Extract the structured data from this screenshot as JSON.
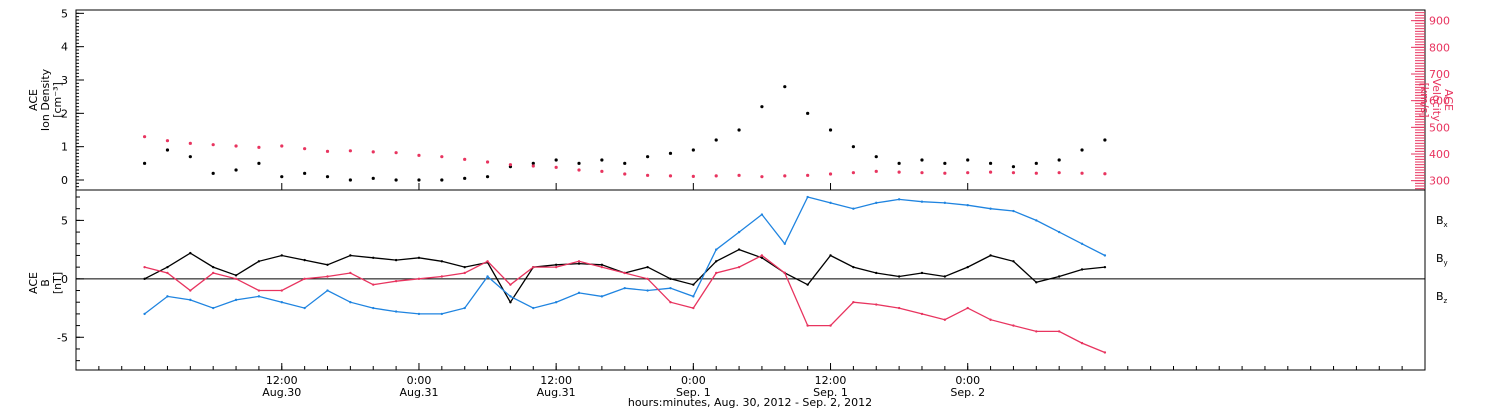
{
  "chart_data": [
    {
      "type": "scatter",
      "ylabel_lines": [
        "ACE",
        "Ion Density",
        "[cm⁻³]"
      ],
      "ylabel_right_lines": [
        "ACE",
        "Velocity",
        "[km/s]"
      ],
      "ylim": [
        -0.3,
        5.1
      ],
      "ylim_right": [
        265,
        940
      ],
      "y_ticks": [
        "0",
        "1",
        "2",
        "3",
        "4",
        "5"
      ],
      "y_ticks_right": [
        "300",
        "400",
        "500",
        "600",
        "700",
        "800",
        "900"
      ],
      "series": [
        {
          "color": "#000000",
          "axis": "left",
          "points": [
            [
              0,
              0.5
            ],
            [
              2,
              0.9
            ],
            [
              4,
              0.7
            ],
            [
              6,
              0.2
            ],
            [
              8,
              0.3
            ],
            [
              10,
              0.5
            ],
            [
              12,
              0.1
            ],
            [
              14,
              0.2
            ],
            [
              16,
              0.1
            ],
            [
              18,
              0.0
            ],
            [
              20,
              0.05
            ],
            [
              22,
              0.0
            ],
            [
              24,
              0.0
            ],
            [
              26,
              0.0
            ],
            [
              28,
              0.05
            ],
            [
              30,
              0.1
            ],
            [
              32,
              0.4
            ],
            [
              34,
              0.5
            ],
            [
              36,
              0.6
            ],
            [
              38,
              0.5
            ],
            [
              40,
              0.6
            ],
            [
              42,
              0.5
            ],
            [
              44,
              0.7
            ],
            [
              46,
              0.8
            ],
            [
              48,
              0.9
            ],
            [
              50,
              1.2
            ],
            [
              52,
              1.5
            ],
            [
              54,
              2.2
            ],
            [
              56,
              2.8
            ],
            [
              58,
              2.0
            ],
            [
              60,
              1.5
            ],
            [
              62,
              1.0
            ],
            [
              64,
              0.7
            ],
            [
              66,
              0.5
            ],
            [
              68,
              0.6
            ],
            [
              70,
              0.5
            ],
            [
              72,
              0.6
            ],
            [
              74,
              0.5
            ],
            [
              76,
              0.4
            ],
            [
              78,
              0.5
            ],
            [
              80,
              0.6
            ],
            [
              82,
              0.9
            ],
            [
              84,
              1.2
            ]
          ]
        },
        {
          "color": "#e8345f",
          "axis": "right",
          "points": [
            [
              0,
              465
            ],
            [
              2,
              450
            ],
            [
              4,
              440
            ],
            [
              6,
              435
            ],
            [
              8,
              430
            ],
            [
              10,
              425
            ],
            [
              12,
              430
            ],
            [
              14,
              420
            ],
            [
              16,
              410
            ],
            [
              18,
              412
            ],
            [
              20,
              408
            ],
            [
              22,
              405
            ],
            [
              24,
              395
            ],
            [
              26,
              390
            ],
            [
              28,
              380
            ],
            [
              30,
              370
            ],
            [
              32,
              360
            ],
            [
              34,
              355
            ],
            [
              36,
              350
            ],
            [
              38,
              340
            ],
            [
              40,
              335
            ],
            [
              42,
              325
            ],
            [
              44,
              320
            ],
            [
              46,
              318
            ],
            [
              48,
              316
            ],
            [
              50,
              318
            ],
            [
              52,
              320
            ],
            [
              54,
              315
            ],
            [
              56,
              318
            ],
            [
              58,
              320
            ],
            [
              60,
              325
            ],
            [
              62,
              330
            ],
            [
              64,
              335
            ],
            [
              66,
              332
            ],
            [
              68,
              330
            ],
            [
              70,
              328
            ],
            [
              72,
              330
            ],
            [
              74,
              332
            ],
            [
              76,
              330
            ],
            [
              78,
              328
            ],
            [
              80,
              330
            ],
            [
              82,
              328
            ],
            [
              84,
              326
            ]
          ]
        }
      ]
    },
    {
      "type": "line",
      "ylabel_lines": [
        "ACE",
        "B",
        "[nT]"
      ],
      "ylim": [
        -7.8,
        7.6
      ],
      "y_ticks": [
        "-5",
        "0",
        "5"
      ],
      "legend": [
        "B",
        "B",
        "B"
      ],
      "legend_sub": [
        "x",
        "y",
        "z"
      ],
      "series": [
        {
          "color": "#000000",
          "points": [
            [
              0,
              0.0
            ],
            [
              2,
              1.0
            ],
            [
              4,
              2.2
            ],
            [
              6,
              1.0
            ],
            [
              8,
              0.3
            ],
            [
              10,
              1.5
            ],
            [
              12,
              2.0
            ],
            [
              14,
              1.6
            ],
            [
              16,
              1.2
            ],
            [
              18,
              2.0
            ],
            [
              20,
              1.8
            ],
            [
              22,
              1.6
            ],
            [
              24,
              1.8
            ],
            [
              26,
              1.5
            ],
            [
              28,
              1.0
            ],
            [
              30,
              1.4
            ],
            [
              32,
              -2.0
            ],
            [
              34,
              1.0
            ],
            [
              36,
              1.2
            ],
            [
              38,
              1.3
            ],
            [
              40,
              1.2
            ],
            [
              42,
              0.5
            ],
            [
              44,
              1.0
            ],
            [
              46,
              0.0
            ],
            [
              48,
              -0.5
            ],
            [
              50,
              1.5
            ],
            [
              52,
              2.5
            ],
            [
              54,
              1.8
            ],
            [
              56,
              0.5
            ],
            [
              58,
              -0.5
            ],
            [
              60,
              2.0
            ],
            [
              62,
              1.0
            ],
            [
              64,
              0.5
            ],
            [
              66,
              0.2
            ],
            [
              68,
              0.5
            ],
            [
              70,
              0.2
            ],
            [
              72,
              1.0
            ],
            [
              74,
              2.0
            ],
            [
              76,
              1.5
            ],
            [
              78,
              -0.3
            ],
            [
              80,
              0.2
            ],
            [
              82,
              0.8
            ],
            [
              84,
              1.0
            ]
          ]
        },
        {
          "color": "#1f84e0",
          "points": [
            [
              0,
              -3.0
            ],
            [
              2,
              -1.5
            ],
            [
              4,
              -1.8
            ],
            [
              6,
              -2.5
            ],
            [
              8,
              -1.8
            ],
            [
              10,
              -1.5
            ],
            [
              12,
              -2.0
            ],
            [
              14,
              -2.5
            ],
            [
              16,
              -1.0
            ],
            [
              18,
              -2.0
            ],
            [
              20,
              -2.5
            ],
            [
              22,
              -2.8
            ],
            [
              24,
              -3.0
            ],
            [
              26,
              -3.0
            ],
            [
              28,
              -2.5
            ],
            [
              30,
              0.2
            ],
            [
              32,
              -1.5
            ],
            [
              34,
              -2.5
            ],
            [
              36,
              -2.0
            ],
            [
              38,
              -1.2
            ],
            [
              40,
              -1.5
            ],
            [
              42,
              -0.8
            ],
            [
              44,
              -1.0
            ],
            [
              46,
              -0.8
            ],
            [
              48,
              -1.5
            ],
            [
              50,
              2.5
            ],
            [
              52,
              4.0
            ],
            [
              54,
              5.5
            ],
            [
              56,
              3.0
            ],
            [
              58,
              7.0
            ],
            [
              60,
              6.5
            ],
            [
              62,
              6.0
            ],
            [
              64,
              6.5
            ],
            [
              66,
              6.8
            ],
            [
              68,
              6.6
            ],
            [
              70,
              6.5
            ],
            [
              72,
              6.3
            ],
            [
              74,
              6.0
            ],
            [
              76,
              5.8
            ],
            [
              78,
              5.0
            ],
            [
              80,
              4.0
            ],
            [
              82,
              3.0
            ],
            [
              84,
              2.0
            ]
          ]
        },
        {
          "color": "#e8345f",
          "points": [
            [
              0,
              1.0
            ],
            [
              2,
              0.5
            ],
            [
              4,
              -1.0
            ],
            [
              6,
              0.5
            ],
            [
              8,
              0.0
            ],
            [
              10,
              -1.0
            ],
            [
              12,
              -1.0
            ],
            [
              14,
              0.0
            ],
            [
              16,
              0.2
            ],
            [
              18,
              0.5
            ],
            [
              20,
              -0.5
            ],
            [
              22,
              -0.2
            ],
            [
              24,
              0.0
            ],
            [
              26,
              0.2
            ],
            [
              28,
              0.5
            ],
            [
              30,
              1.5
            ],
            [
              32,
              -0.5
            ],
            [
              34,
              1.0
            ],
            [
              36,
              1.0
            ],
            [
              38,
              1.5
            ],
            [
              40,
              1.0
            ],
            [
              42,
              0.5
            ],
            [
              44,
              0.0
            ],
            [
              46,
              -2.0
            ],
            [
              48,
              -2.5
            ],
            [
              50,
              0.5
            ],
            [
              52,
              1.0
            ],
            [
              54,
              2.0
            ],
            [
              56,
              0.5
            ],
            [
              58,
              -4.0
            ],
            [
              60,
              -4.0
            ],
            [
              62,
              -2.0
            ],
            [
              64,
              -2.2
            ],
            [
              66,
              -2.5
            ],
            [
              68,
              -3.0
            ],
            [
              70,
              -3.5
            ],
            [
              72,
              -2.5
            ],
            [
              74,
              -3.5
            ],
            [
              76,
              -4.0
            ],
            [
              78,
              -4.5
            ],
            [
              80,
              -4.5
            ],
            [
              82,
              -5.5
            ],
            [
              84,
              -6.3
            ]
          ]
        }
      ]
    }
  ],
  "x_axis": {
    "xlim": [
      -6,
      112
    ],
    "tick_positions": [
      12,
      24,
      36,
      48,
      60,
      72
    ],
    "tick_time": [
      "12:00",
      "0:00",
      "12:00",
      "0:00",
      "12:00",
      "0:00"
    ],
    "tick_date": [
      "Aug.30",
      "Aug.31",
      "Aug.31",
      "Sep. 1",
      "Sep. 1",
      "Sep. 2"
    ],
    "xlabel": "hours:minutes, Aug. 30, 2012 - Sep. 2, 2012"
  }
}
